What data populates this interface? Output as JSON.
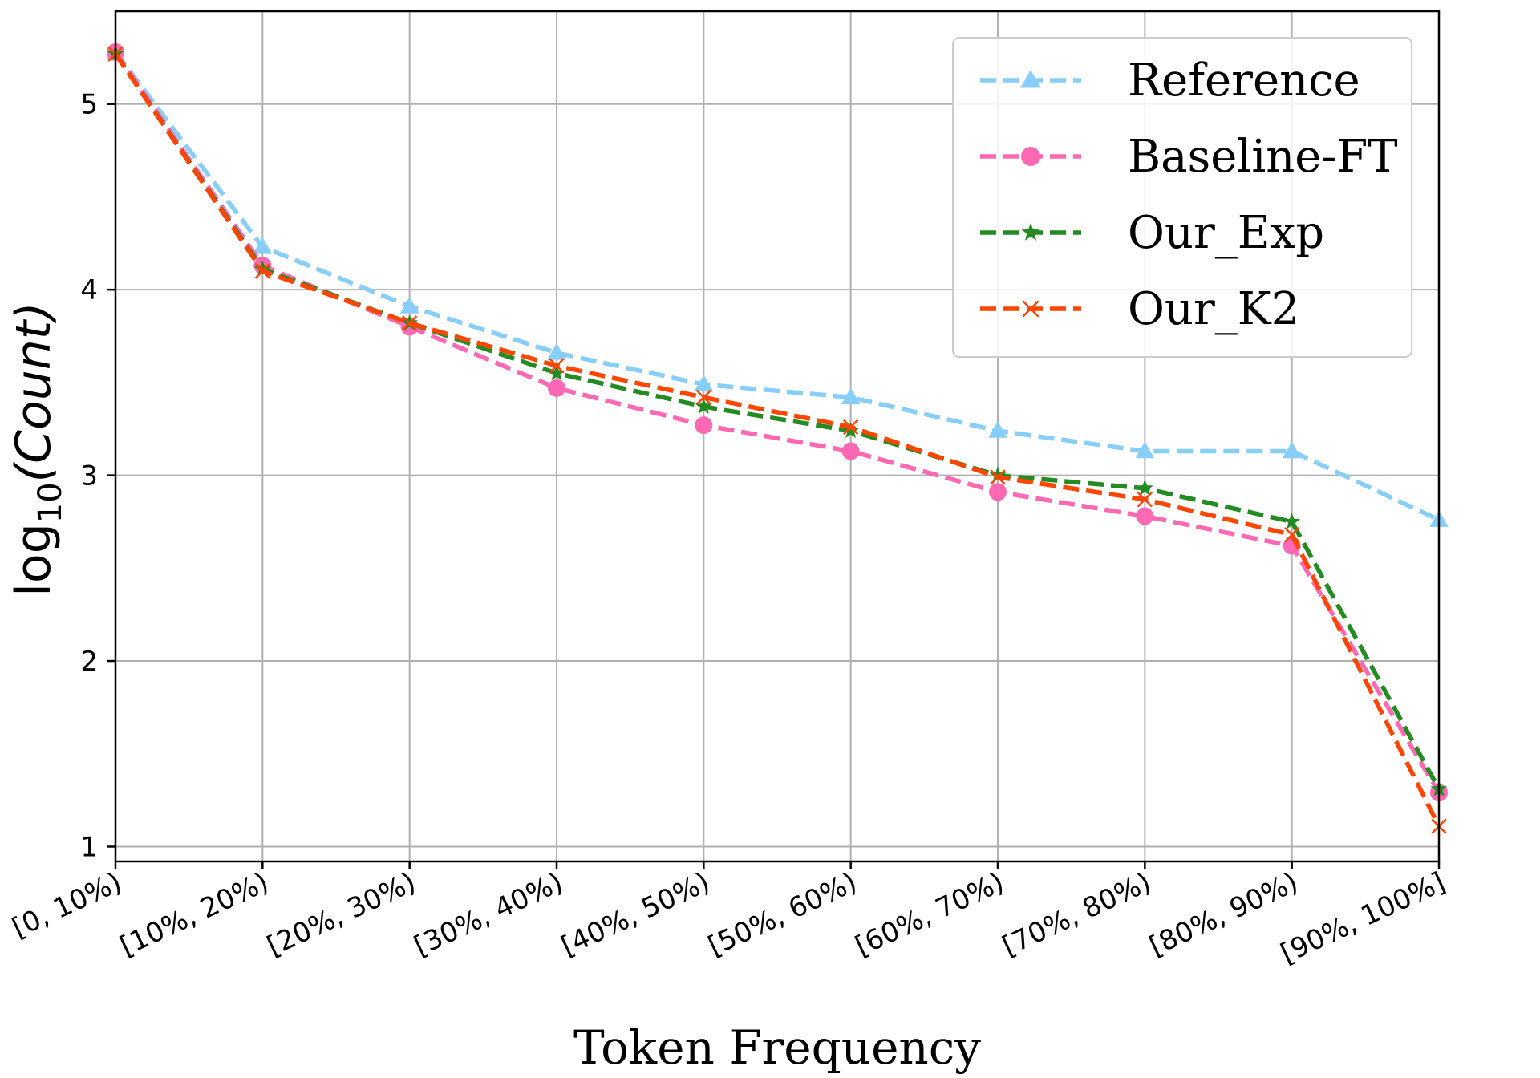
{
  "chart_data": {
    "type": "line",
    "title": "",
    "xlabel": "Token Frequency",
    "ylabel_main": "log",
    "ylabel_sub": "10",
    "ylabel_arg": "(Count)",
    "categories": [
      "[0, 10%)",
      "[10%, 20%)",
      "[20%, 30%)",
      "[30%, 40%)",
      "[40%, 50%)",
      "[50%, 60%)",
      "[60%, 70%)",
      "[70%, 80%)",
      "[80%, 90%)",
      "[90%, 100%]"
    ],
    "ylim": [
      0.92,
      5.5
    ],
    "yticks": [
      1,
      2,
      3,
      4,
      5
    ],
    "grid": true,
    "legend_position": "top-right",
    "series": [
      {
        "name": "Reference",
        "color": "#87cefa",
        "marker": "triangle",
        "values": [
          5.28,
          4.23,
          3.91,
          3.66,
          3.49,
          3.42,
          3.24,
          3.13,
          3.13,
          2.76
        ]
      },
      {
        "name": "Baseline-FT",
        "color": "#ff69b4",
        "marker": "circle",
        "values": [
          5.28,
          4.13,
          3.8,
          3.47,
          3.27,
          3.13,
          2.91,
          2.78,
          2.62,
          1.29
        ]
      },
      {
        "name": "Our_Exp",
        "color": "#228b22",
        "marker": "star",
        "values": [
          5.27,
          4.11,
          3.82,
          3.55,
          3.37,
          3.24,
          3.0,
          2.93,
          2.75,
          1.31
        ]
      },
      {
        "name": "Our_K2",
        "color": "#ff4500",
        "marker": "x",
        "values": [
          5.27,
          4.1,
          3.82,
          3.59,
          3.42,
          3.26,
          2.99,
          2.87,
          2.68,
          1.11
        ]
      }
    ]
  }
}
